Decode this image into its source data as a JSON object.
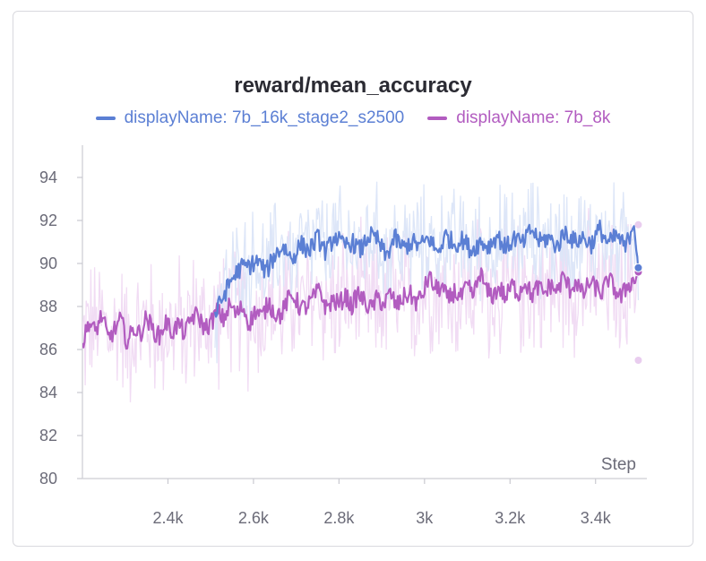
{
  "chart_data": {
    "type": "line",
    "title": "reward/mean_accuracy",
    "xlabel": "Step",
    "ylabel": "",
    "xlim": [
      2200,
      3520
    ],
    "ylim": [
      80,
      95.5
    ],
    "x_ticks": [
      2400,
      2600,
      2800,
      3000,
      3200,
      3400
    ],
    "x_tick_labels": [
      "2.4k",
      "2.6k",
      "2.8k",
      "3k",
      "3.2k",
      "3.4k"
    ],
    "y_ticks": [
      80,
      82,
      84,
      86,
      88,
      90,
      92,
      94
    ],
    "y_tick_labels": [
      "80",
      "82",
      "84",
      "86",
      "88",
      "90",
      "92",
      "94"
    ],
    "grid": false,
    "legend_position": "top",
    "series": [
      {
        "name": "displayName: 7b_16k_stage2_s2500",
        "color": "#5b7fd4",
        "x_range": [
          2510,
          3500
        ],
        "smoothed": [
          [
            2510,
            87.6
          ],
          [
            2530,
            88.5
          ],
          [
            2550,
            89.3
          ],
          [
            2570,
            89.8
          ],
          [
            2590,
            89.9
          ],
          [
            2610,
            90.1
          ],
          [
            2630,
            89.6
          ],
          [
            2650,
            90.4
          ],
          [
            2670,
            90.8
          ],
          [
            2690,
            90.2
          ],
          [
            2710,
            90.9
          ],
          [
            2730,
            90.6
          ],
          [
            2750,
            91.2
          ],
          [
            2770,
            90.5
          ],
          [
            2790,
            91.3
          ],
          [
            2810,
            90.8
          ],
          [
            2830,
            91.0
          ],
          [
            2850,
            90.6
          ],
          [
            2870,
            91.3
          ],
          [
            2890,
            91.1
          ],
          [
            2910,
            90.3
          ],
          [
            2930,
            91.2
          ],
          [
            2950,
            90.7
          ],
          [
            2970,
            91.0
          ],
          [
            2990,
            90.8
          ],
          [
            3010,
            91.2
          ],
          [
            3030,
            90.5
          ],
          [
            3050,
            91.3
          ],
          [
            3070,
            90.9
          ],
          [
            3090,
            91.1
          ],
          [
            3110,
            90.6
          ],
          [
            3130,
            91.0
          ],
          [
            3150,
            90.8
          ],
          [
            3170,
            91.3
          ],
          [
            3190,
            90.7
          ],
          [
            3210,
            91.2
          ],
          [
            3230,
            90.9
          ],
          [
            3250,
            91.6
          ],
          [
            3270,
            91.0
          ],
          [
            3290,
            91.2
          ],
          [
            3310,
            90.8
          ],
          [
            3330,
            91.5
          ],
          [
            3350,
            91.0
          ],
          [
            3370,
            91.2
          ],
          [
            3390,
            90.9
          ],
          [
            3410,
            91.6
          ],
          [
            3430,
            90.9
          ],
          [
            3450,
            91.3
          ],
          [
            3470,
            90.7
          ],
          [
            3490,
            92.0
          ],
          [
            3500,
            89.8
          ]
        ]
      },
      {
        "name": "displayName: 7b_8k",
        "color": "#b25cc0",
        "x_range": [
          2200,
          3500
        ],
        "smoothed": [
          [
            2200,
            86.2
          ],
          [
            2215,
            87.3
          ],
          [
            2230,
            86.8
          ],
          [
            2245,
            87.6
          ],
          [
            2260,
            86.5
          ],
          [
            2275,
            86.9
          ],
          [
            2290,
            87.4
          ],
          [
            2305,
            86.3
          ],
          [
            2320,
            87.0
          ],
          [
            2335,
            86.7
          ],
          [
            2350,
            87.5
          ],
          [
            2365,
            86.9
          ],
          [
            2380,
            86.6
          ],
          [
            2395,
            87.3
          ],
          [
            2410,
            86.8
          ],
          [
            2425,
            87.2
          ],
          [
            2440,
            86.7
          ],
          [
            2455,
            87.5
          ],
          [
            2470,
            87.6
          ],
          [
            2485,
            87.0
          ],
          [
            2500,
            87.2
          ],
          [
            2515,
            87.8
          ],
          [
            2530,
            87.4
          ],
          [
            2545,
            88.1
          ],
          [
            2560,
            87.6
          ],
          [
            2575,
            88.0
          ],
          [
            2590,
            87.2
          ],
          [
            2605,
            87.8
          ],
          [
            2620,
            87.5
          ],
          [
            2635,
            88.2
          ],
          [
            2650,
            87.7
          ],
          [
            2665,
            87.6
          ],
          [
            2680,
            88.3
          ],
          [
            2695,
            88.5
          ],
          [
            2710,
            87.9
          ],
          [
            2725,
            88.0
          ],
          [
            2740,
            88.4
          ],
          [
            2755,
            88.8
          ],
          [
            2770,
            87.9
          ],
          [
            2785,
            88.3
          ],
          [
            2800,
            88.1
          ],
          [
            2815,
            88.5
          ],
          [
            2830,
            88.0
          ],
          [
            2845,
            88.6
          ],
          [
            2860,
            88.2
          ],
          [
            2875,
            87.9
          ],
          [
            2890,
            88.4
          ],
          [
            2905,
            88.1
          ],
          [
            2920,
            88.6
          ],
          [
            2935,
            88.0
          ],
          [
            2950,
            88.4
          ],
          [
            2965,
            88.6
          ],
          [
            2980,
            88.2
          ],
          [
            2995,
            88.5
          ],
          [
            3010,
            89.4
          ],
          [
            3025,
            88.8
          ],
          [
            3040,
            88.9
          ],
          [
            3055,
            88.3
          ],
          [
            3070,
            88.7
          ],
          [
            3085,
            88.4
          ],
          [
            3100,
            88.9
          ],
          [
            3115,
            88.5
          ],
          [
            3130,
            89.6
          ],
          [
            3145,
            88.7
          ],
          [
            3160,
            88.5
          ],
          [
            3175,
            88.9
          ],
          [
            3190,
            88.4
          ],
          [
            3205,
            89.0
          ],
          [
            3220,
            88.6
          ],
          [
            3235,
            89.2
          ],
          [
            3250,
            88.5
          ],
          [
            3265,
            88.9
          ],
          [
            3280,
            88.6
          ],
          [
            3295,
            89.0
          ],
          [
            3310,
            88.7
          ],
          [
            3325,
            89.4
          ],
          [
            3340,
            88.8
          ],
          [
            3355,
            89.2
          ],
          [
            3370,
            88.5
          ],
          [
            3385,
            89.1
          ],
          [
            3400,
            88.9
          ],
          [
            3415,
            88.6
          ],
          [
            3430,
            89.3
          ],
          [
            3445,
            88.8
          ],
          [
            3460,
            88.4
          ],
          [
            3475,
            89.0
          ],
          [
            3490,
            89.2
          ],
          [
            3500,
            89.6
          ]
        ],
        "raw_min_markers": [
          [
            3500,
            85.5
          ]
        ],
        "raw_max_markers": [
          [
            3500,
            91.8
          ]
        ]
      }
    ]
  }
}
